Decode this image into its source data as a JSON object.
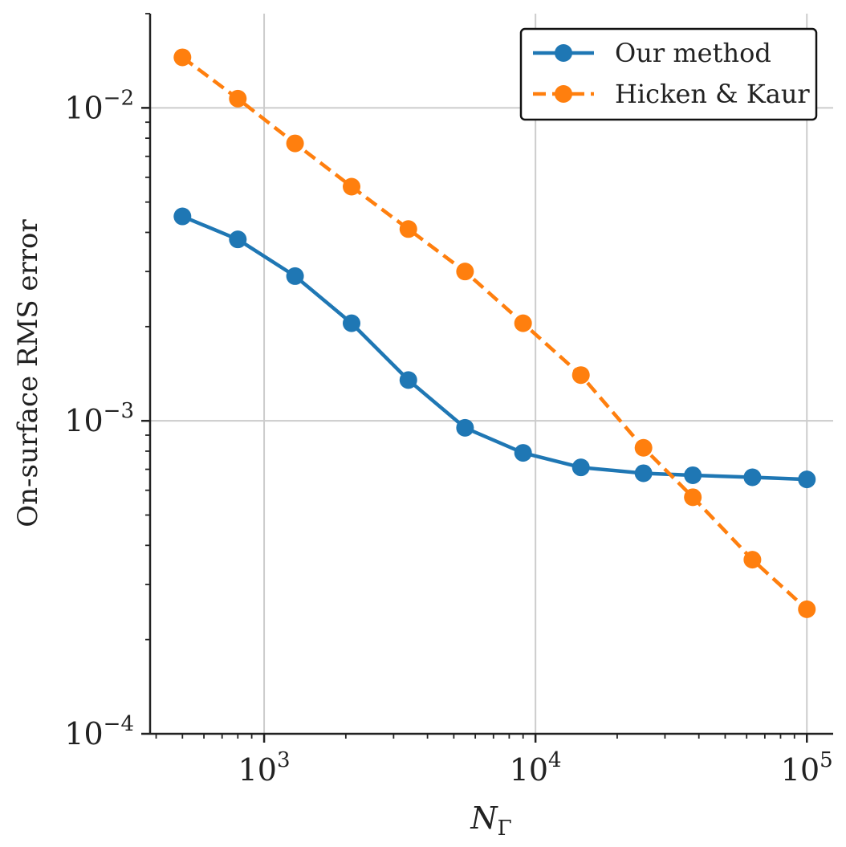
{
  "chart_data": {
    "type": "line",
    "xlabel": {
      "base": "N",
      "sub": "Γ"
    },
    "ylabel": "On-surface RMS error",
    "xscale": "log",
    "yscale": "log",
    "xlim": [
      380,
      125000
    ],
    "ylim": [
      0.0001,
      0.02
    ],
    "grid": true,
    "legend_position": "top-right",
    "x_ticks": [
      {
        "value": 1000,
        "base": "10",
        "exp": "3"
      },
      {
        "value": 10000,
        "base": "10",
        "exp": "4"
      },
      {
        "value": 100000,
        "base": "10",
        "exp": "5"
      }
    ],
    "y_ticks": [
      {
        "value": 0.0001,
        "base": "10",
        "exp": "−4"
      },
      {
        "value": 0.001,
        "base": "10",
        "exp": "−3"
      },
      {
        "value": 0.01,
        "base": "10",
        "exp": "−2"
      }
    ],
    "series": [
      {
        "name": "Our method",
        "color": "#1f77b4",
        "linestyle": "solid",
        "marker": "circle",
        "x": [
          500,
          800,
          1300,
          2100,
          3400,
          5500,
          9000,
          14700,
          25000,
          38000,
          63000,
          100000
        ],
        "y": [
          0.0045,
          0.0038,
          0.0029,
          0.00205,
          0.00135,
          0.00095,
          0.00079,
          0.00071,
          0.00068,
          0.00067,
          0.00066,
          0.00065
        ]
      },
      {
        "name": "Hicken & Kaur",
        "color": "#ff7f0e",
        "linestyle": "dashed",
        "marker": "circle",
        "x": [
          500,
          800,
          1300,
          2100,
          3400,
          5500,
          9000,
          14700,
          25000,
          38000,
          63000,
          100000
        ],
        "y": [
          0.0145,
          0.0107,
          0.0077,
          0.0056,
          0.0041,
          0.003,
          0.00205,
          0.0014,
          0.00082,
          0.00057,
          0.00036,
          0.00025
        ]
      }
    ]
  }
}
